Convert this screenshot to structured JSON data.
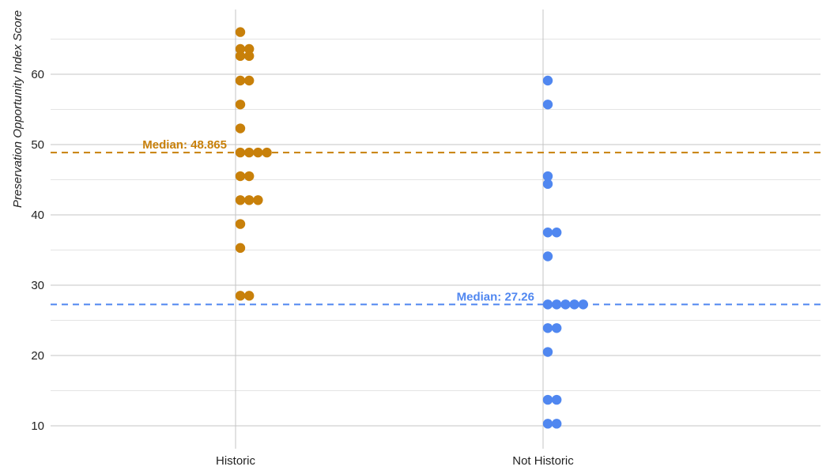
{
  "chart_data": {
    "type": "scatter",
    "subtype": "beeswarm",
    "title": "",
    "xlabel": "",
    "ylabel": "Preservation Opportunity Index Score",
    "categories": [
      "Historic",
      "Not Historic"
    ],
    "ylim": [
      7,
      69
    ],
    "yticks": [
      10,
      20,
      30,
      40,
      50,
      60
    ],
    "grid": true,
    "legend": "none",
    "series": [
      {
        "category": "Historic",
        "color": "#c8800a",
        "values": [
          66.0,
          63.6,
          63.6,
          62.6,
          62.6,
          59.1,
          59.1,
          55.7,
          52.3,
          48.865,
          48.865,
          48.865,
          48.865,
          45.5,
          45.5,
          42.1,
          42.1,
          42.1,
          38.7,
          35.3,
          28.5,
          28.5
        ],
        "median": 48.865,
        "median_label": "Median: 48.865"
      },
      {
        "category": "Not Historic",
        "color": "#5087f0",
        "values": [
          59.1,
          55.7,
          45.5,
          44.4,
          37.5,
          37.5,
          34.1,
          27.26,
          27.26,
          27.26,
          27.26,
          27.26,
          23.9,
          23.9,
          20.5,
          13.7,
          13.7,
          10.3,
          10.3
        ],
        "median": 27.26,
        "median_label": "Median: 27.26"
      }
    ]
  }
}
